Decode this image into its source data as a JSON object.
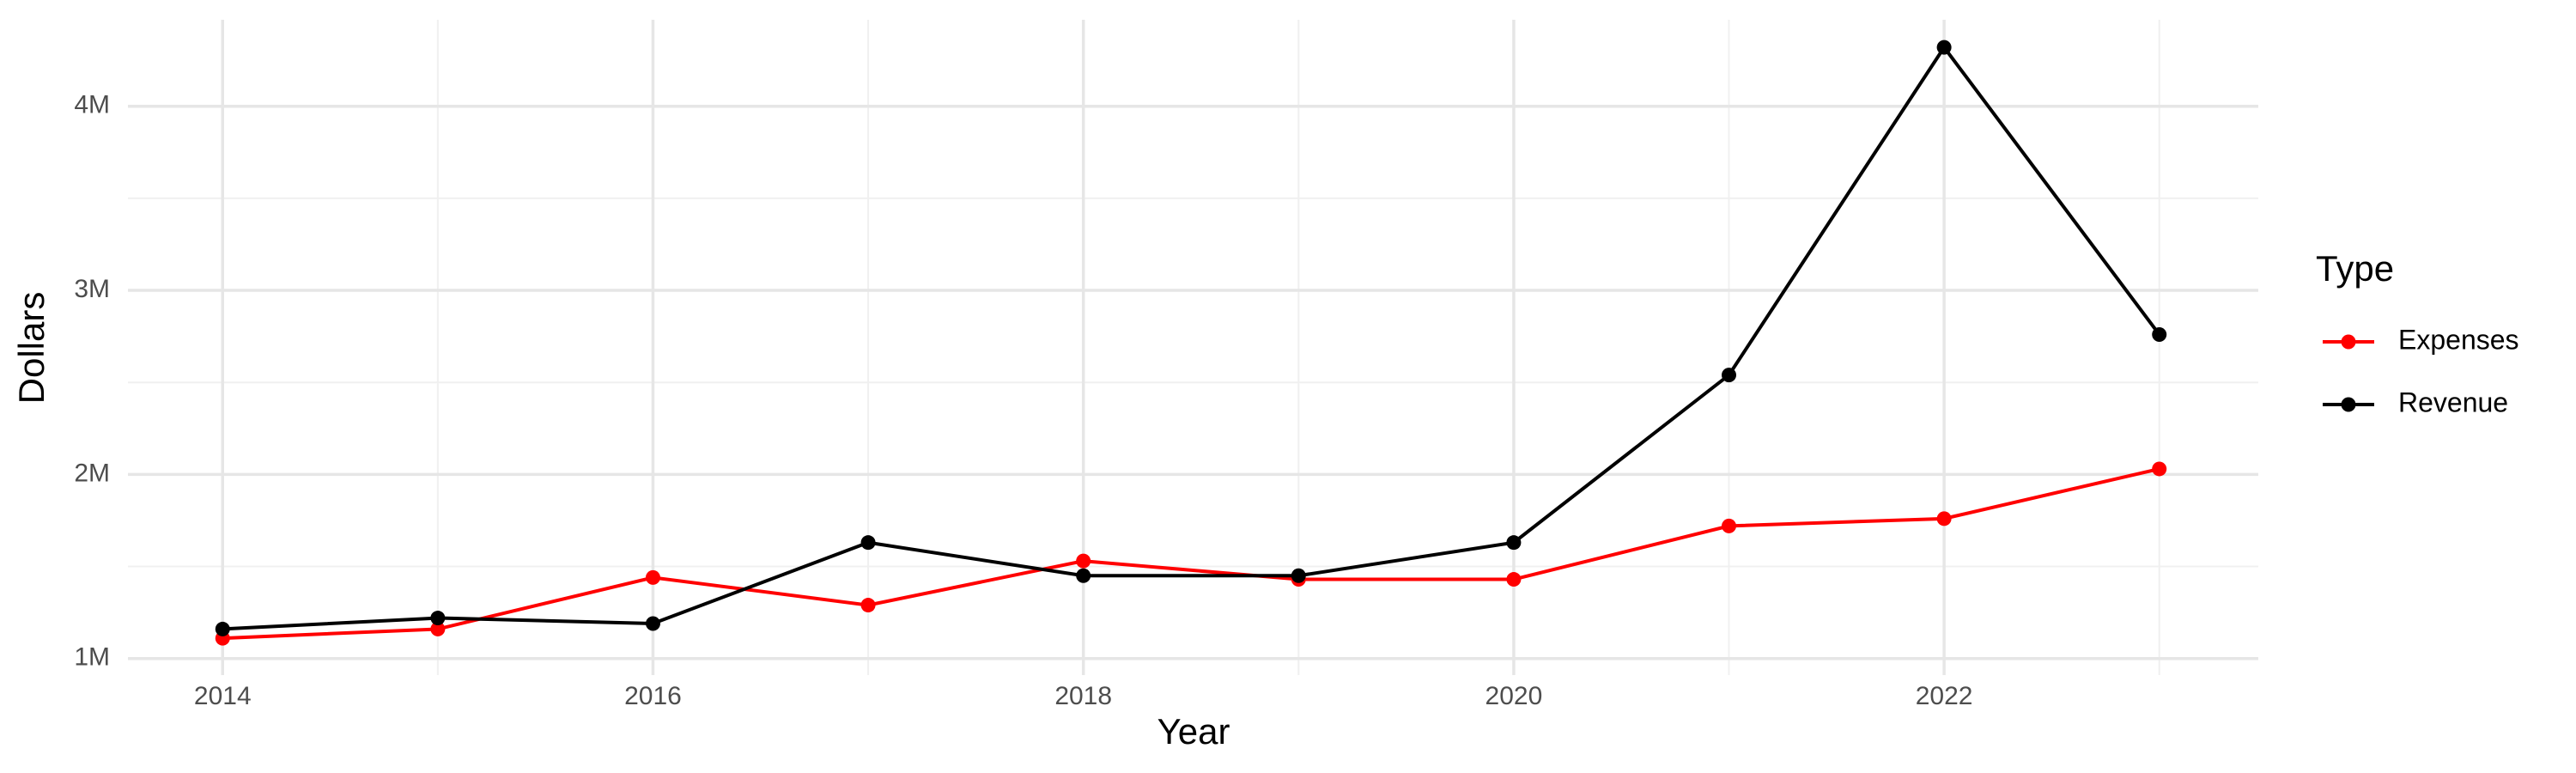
{
  "chart_data": {
    "type": "line",
    "x_label": "Year",
    "y_label": "Dollars",
    "legend_title": "Type",
    "x": [
      2014,
      2015,
      2016,
      2017,
      2018,
      2019,
      2020,
      2021,
      2022,
      2023
    ],
    "series": [
      {
        "name": "Expenses",
        "color": "#ff0000",
        "values": [
          1110000,
          1160000,
          1440000,
          1290000,
          1530000,
          1430000,
          1430000,
          1720000,
          1760000,
          2030000
        ]
      },
      {
        "name": "Revenue",
        "color": "#000000",
        "values": [
          1160000,
          1220000,
          1190000,
          1630000,
          1450000,
          1450000,
          1630000,
          2540000,
          4320000,
          2760000
        ]
      }
    ],
    "xlim": [
      2013.56,
      2023.46
    ],
    "ylim": [
      910000,
      4470000
    ],
    "xticks": [
      2014,
      2016,
      2018,
      2020,
      2022
    ],
    "yticks": [
      {
        "value": 1000000,
        "label": "1M"
      },
      {
        "value": 2000000,
        "label": "2M"
      },
      {
        "value": 3000000,
        "label": "3M"
      },
      {
        "value": 4000000,
        "label": "4M"
      }
    ],
    "grid": true,
    "legend_position": "right"
  }
}
